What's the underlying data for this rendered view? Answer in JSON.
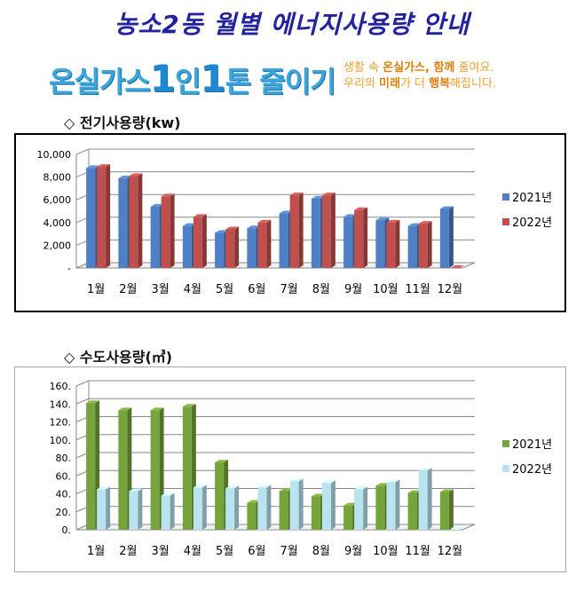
{
  "header": {
    "title": "농소2동 월별 에너지사용량 안내",
    "slogan_prefix": "온실가스",
    "slogan_num1": "1",
    "slogan_mid": "인",
    "slogan_num2": "1",
    "slogan_suffix": "톤 줄이기",
    "tagline_line1_a": "생활 속 ",
    "tagline_line1_b": "온실가스, 함께",
    "tagline_line1_c": " 줄여요.",
    "tagline_line2_a": "우리의 ",
    "tagline_line2_b": "미래",
    "tagline_line2_c": "가 더 ",
    "tagline_line2_d": "행복",
    "tagline_line2_e": "해집니다."
  },
  "sections": {
    "electric_title": "◇ 전기사용량(kw)",
    "water_title": "◇ 수도사용량(㎥)"
  },
  "chart_data": [
    {
      "type": "bar",
      "title": "전기사용량(kw)",
      "categories": [
        "1월",
        "2월",
        "3월",
        "4월",
        "5월",
        "6월",
        "7월",
        "8월",
        "9월",
        "10월",
        "11월",
        "12월"
      ],
      "series": [
        {
          "name": "2021년",
          "color": "#4f7fc4",
          "values": [
            8800,
            7900,
            5400,
            3700,
            3100,
            3500,
            4800,
            6100,
            4500,
            4200,
            3700,
            5200
          ]
        },
        {
          "name": "2022년",
          "color": "#c0504d",
          "values": [
            8900,
            8100,
            6300,
            4500,
            3400,
            4000,
            6400,
            6400,
            5100,
            4000,
            3900,
            0
          ]
        }
      ],
      "ylim": [
        0,
        10000
      ],
      "yticks": [
        0,
        2000,
        4000,
        6000,
        8000,
        10000
      ],
      "ytick_labels": [
        "-",
        "2,000",
        "4,000",
        "6,000",
        "8,000",
        "10,000"
      ],
      "grid": true,
      "legend": "right"
    },
    {
      "type": "bar",
      "title": "수도사용량(㎥)",
      "categories": [
        "1월",
        "2월",
        "3월",
        "4월",
        "5월",
        "6월",
        "7월",
        "8월",
        "9월",
        "10월",
        "11월",
        "12월"
      ],
      "series": [
        {
          "name": "2021년",
          "color": "#77a33c",
          "values": [
            141,
            133,
            133,
            137,
            75,
            30,
            43,
            37,
            27,
            49,
            41,
            42
          ]
        },
        {
          "name": "2022년",
          "color": "#b9e3ee",
          "values": [
            45,
            43,
            38,
            47,
            46,
            47,
            54,
            52,
            45,
            53,
            66,
            0
          ]
        }
      ],
      "ylim": [
        0,
        160
      ],
      "yticks": [
        0,
        20,
        40,
        60,
        80,
        100,
        120,
        140,
        160
      ],
      "ytick_labels": [
        "0.",
        "20.",
        "40.",
        "60.",
        "80.",
        "100.",
        "120.",
        "140.",
        "160."
      ],
      "grid": true,
      "legend": "right"
    }
  ]
}
